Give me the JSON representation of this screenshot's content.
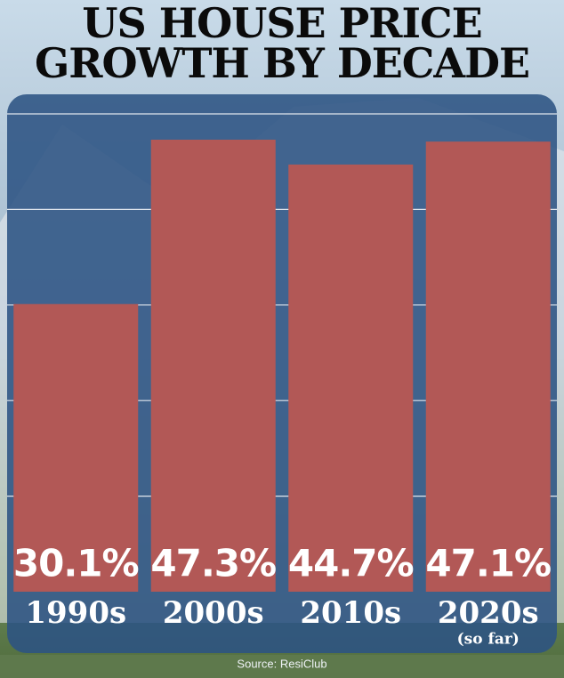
{
  "chart_data": {
    "type": "bar",
    "title_lines": [
      "US HOUSE PRICE",
      "GROWTH BY DECADE"
    ],
    "categories": [
      "1990s",
      "2000s",
      "2010s",
      "2020s"
    ],
    "category_notes": [
      null,
      null,
      null,
      "(so far)"
    ],
    "values": [
      30.1,
      47.3,
      44.7,
      47.1
    ],
    "value_labels": [
      "30.1%",
      "47.3%",
      "44.7%",
      "47.1%"
    ],
    "color": "#b25856",
    "ylim": [
      0,
      50
    ],
    "yticks": [
      10,
      20,
      30,
      40,
      50
    ],
    "grid": true,
    "source": "Source: ResiClub"
  }
}
